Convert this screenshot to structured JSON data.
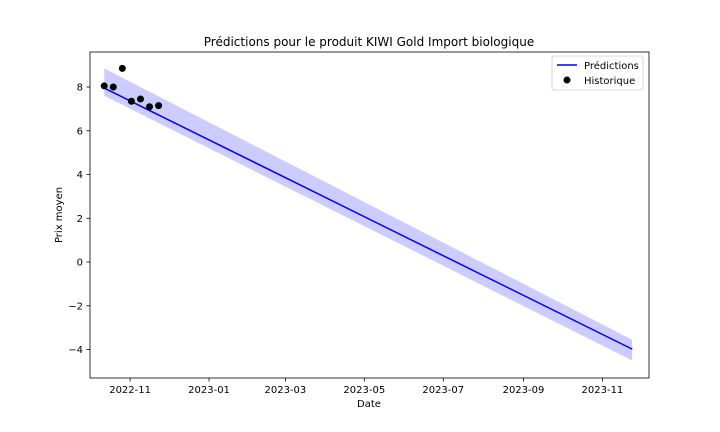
{
  "chart_data": {
    "type": "line",
    "title": "Prédictions pour le produit KIWI Gold Import biologique",
    "xlabel": "Date",
    "ylabel": "Prix moyen",
    "xlim": [
      "2022-10-01",
      "2023-12-07"
    ],
    "ylim": [
      -5.3,
      9.6
    ],
    "x_ticks": [
      "2022-11",
      "2023-01",
      "2023-03",
      "2023-05",
      "2023-07",
      "2023-09",
      "2023-11"
    ],
    "y_ticks": [
      -4,
      -2,
      0,
      2,
      4,
      6,
      8
    ],
    "grid": false,
    "legend": {
      "position": "top-right",
      "entries": [
        "Prédictions",
        "Historique"
      ]
    },
    "series": [
      {
        "name": "Prédictions",
        "kind": "line",
        "color": "#0000ff",
        "x": [
          "2022-10-12",
          "2023-11-24"
        ],
        "y": [
          7.95,
          -3.98
        ]
      },
      {
        "kind": "band",
        "color": "#ccccff",
        "x": [
          "2022-10-12",
          "2023-11-24"
        ],
        "lower": [
          7.6,
          -4.5
        ],
        "upper": [
          8.85,
          -3.55
        ]
      },
      {
        "name": "Historique",
        "kind": "scatter",
        "color": "#000000",
        "x": [
          "2022-10-12",
          "2022-10-19",
          "2022-10-26",
          "2022-11-02",
          "2022-11-09",
          "2022-11-16",
          "2022-11-23"
        ],
        "y": [
          8.05,
          8.0,
          8.85,
          7.35,
          7.45,
          7.1,
          7.15
        ]
      }
    ]
  }
}
